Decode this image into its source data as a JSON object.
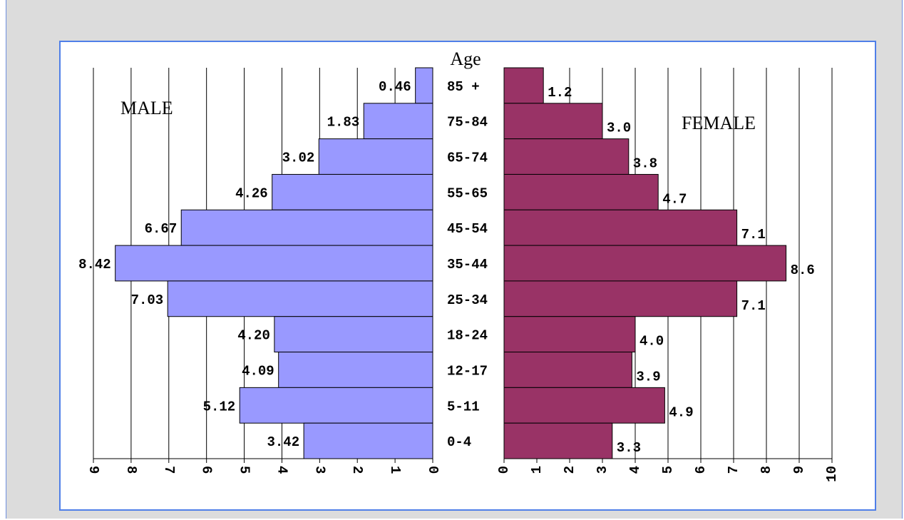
{
  "chart_data": [
    {
      "type": "bar",
      "orientation": "horizontal",
      "direction": "right-to-left",
      "panel": "MALE",
      "axis_title": "Age",
      "categories": [
        "85 +",
        "75-84",
        "65-74",
        "55-65",
        "45-54",
        "35-44",
        "25-34",
        "18-24",
        "12-17",
        "5-11",
        "0-4"
      ],
      "values": [
        0.46,
        1.83,
        3.02,
        4.26,
        6.67,
        8.42,
        7.03,
        4.2,
        4.09,
        5.12,
        3.42
      ],
      "labels": [
        "0.46",
        "1.83",
        "3.02",
        "4.26",
        "6.67",
        "8.42",
        "7.03",
        "4.20",
        "4.09",
        "5.12",
        "3.42"
      ],
      "xlim": [
        0,
        9
      ],
      "xticks": [
        "0",
        "1",
        "2",
        "3",
        "4",
        "5",
        "6",
        "7",
        "8",
        "9"
      ],
      "grid": true,
      "color": "#9999ff"
    },
    {
      "type": "bar",
      "orientation": "horizontal",
      "direction": "left-to-right",
      "panel": "FEMALE",
      "categories": [
        "85 +",
        "75-84",
        "65-74",
        "55-65",
        "45-54",
        "35-44",
        "25-34",
        "18-24",
        "12-17",
        "5-11",
        "0-4"
      ],
      "values": [
        1.2,
        3.0,
        3.8,
        4.7,
        7.1,
        8.6,
        7.1,
        4.0,
        3.9,
        4.9,
        3.3
      ],
      "labels": [
        "1.2",
        "3.0",
        "3.8",
        "4.7",
        "7.1",
        "8.6",
        "7.1",
        "4.0",
        "3.9",
        "4.9",
        "3.3"
      ],
      "xlim": [
        0,
        10
      ],
      "xticks": [
        "0",
        "1",
        "2",
        "3",
        "4",
        "5",
        "6",
        "7",
        "8",
        "9",
        "10"
      ],
      "grid": true,
      "color": "#993366"
    }
  ]
}
